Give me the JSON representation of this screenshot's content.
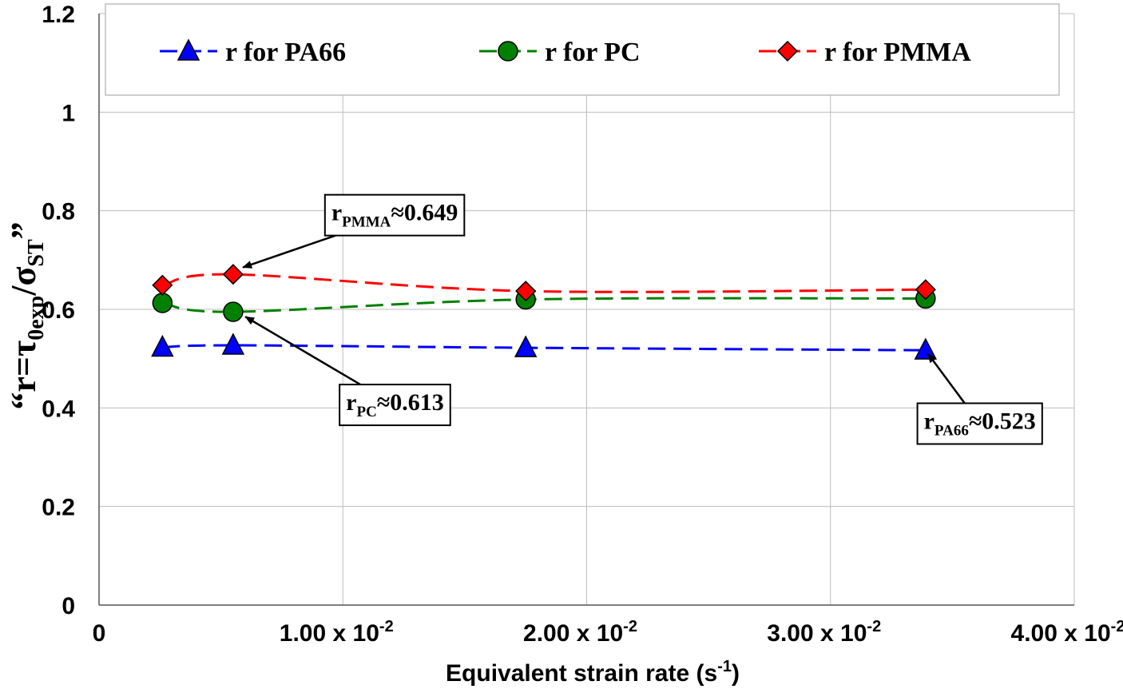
{
  "chart_data": {
    "type": "line",
    "title": "",
    "xlabel": {
      "main": "Equivalent strain rate (s",
      "sup": "-1",
      "close": ")"
    },
    "ylabel": {
      "q1": "“",
      "r": "r=τ",
      "sub1": "0exp",
      "slash": "/σ",
      "sub2": "ST",
      "q2": "”"
    },
    "xlim": [
      0,
      0.04
    ],
    "ylim": [
      0,
      1.2
    ],
    "yticks": [
      {
        "value": 0,
        "label": "0"
      },
      {
        "value": 0.2,
        "label": "0.2"
      },
      {
        "value": 0.4,
        "label": "0.4"
      },
      {
        "value": 0.6,
        "label": "0.6"
      },
      {
        "value": 0.8,
        "label": "0.8"
      },
      {
        "value": 1.0,
        "label": "1"
      },
      {
        "value": 1.2,
        "label": "1.2"
      }
    ],
    "xticks": [
      {
        "value": 0,
        "label": "0",
        "sup": ""
      },
      {
        "value": 0.01,
        "label": "1.00 x 10",
        "sup": "-2"
      },
      {
        "value": 0.02,
        "label": "2.00 x 10",
        "sup": "-2"
      },
      {
        "value": 0.03,
        "label": "3.00 x 10",
        "sup": "-2"
      },
      {
        "value": 0.04,
        "label": "4.00 x 10",
        "sup": "-2"
      }
    ],
    "grid": true,
    "legend_position": "top",
    "series": [
      {
        "name": "r for PA66",
        "color": "#0000ff",
        "marker": "triangle",
        "x": [
          0.0026,
          0.0055,
          0.0175,
          0.0339
        ],
        "y": [
          0.523,
          0.527,
          0.522,
          0.517
        ]
      },
      {
        "name": "r for PC",
        "color": "#008000",
        "marker": "circle",
        "x": [
          0.0026,
          0.0055,
          0.0175,
          0.0339
        ],
        "y": [
          0.613,
          0.595,
          0.62,
          0.622
        ]
      },
      {
        "name": "r for PMMA",
        "color": "#ff0000",
        "marker": "diamond",
        "x": [
          0.0026,
          0.0055,
          0.0175,
          0.0339
        ],
        "y": [
          0.649,
          0.671,
          0.637,
          0.64
        ]
      }
    ],
    "annotations": [
      {
        "name": "pmma",
        "r": "r",
        "sub": "PMMA",
        "value": "≈0.649",
        "box_x": 0.0092,
        "box_y": 0.8,
        "target_x": 0.0059,
        "target_y": 0.685
      },
      {
        "name": "pc",
        "r": "r",
        "sub": "PC",
        "value": "≈0.613",
        "box_x": 0.0098,
        "box_y": 0.415,
        "target_x": 0.006,
        "target_y": 0.585
      },
      {
        "name": "pa66",
        "r": "r",
        "sub": "PA66",
        "value": "≈0.523",
        "box_x": 0.0335,
        "box_y": 0.377,
        "target_x": 0.034,
        "target_y": 0.51
      }
    ]
  }
}
